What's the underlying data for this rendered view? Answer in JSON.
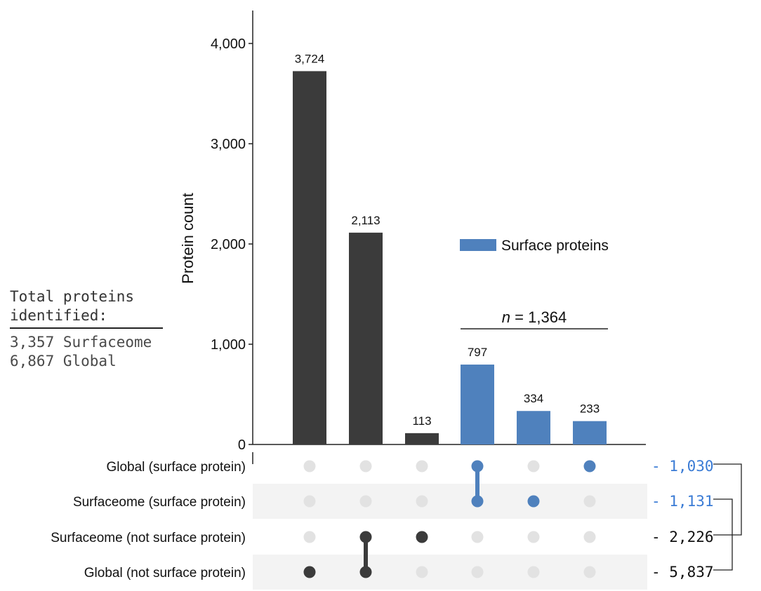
{
  "summary": {
    "title_line1": "Total proteins",
    "title_line2": "identified:",
    "line1": "3,357 Surfaceome",
    "line2": "6,867 Global"
  },
  "colors": {
    "dark": "#3b3b3b",
    "blue": "#4f81bd",
    "blue_text": "#3a7bd5",
    "inactive_dot": "#e2e2e2",
    "stripe": "#f3f3f3"
  },
  "chart_data": {
    "type": "bar",
    "ylabel": "Protein count",
    "ylim": [
      0,
      4000
    ],
    "yticks": [
      0,
      1000,
      2000,
      3000,
      4000
    ],
    "ytick_labels": [
      "0",
      "1,000",
      "2,000",
      "3,000",
      "4,000"
    ],
    "bars": [
      {
        "value": 3724,
        "label": "3,724",
        "group": "dark"
      },
      {
        "value": 2113,
        "label": "2,113",
        "group": "dark"
      },
      {
        "value": 113,
        "label": "113",
        "group": "dark"
      },
      {
        "value": 797,
        "label": "797",
        "group": "blue"
      },
      {
        "value": 334,
        "label": "334",
        "group": "blue"
      },
      {
        "value": 233,
        "label": "233",
        "group": "blue"
      }
    ],
    "legend": {
      "label": "Surface proteins",
      "placement": "top-right"
    },
    "bracket_annotation": {
      "italic": "n",
      "rest": " = 1,364",
      "spans_bars": [
        3,
        5
      ]
    },
    "sets": [
      {
        "name": "Global (surface protein)",
        "size": 1030,
        "size_label": "1,030",
        "color": "blue"
      },
      {
        "name": "Surfaceome (surface protein)",
        "size": 1131,
        "size_label": "1,131",
        "color": "blue"
      },
      {
        "name": "Surfaceome (not surface protein)",
        "size": 2226,
        "size_label": "2,226",
        "color": "dark"
      },
      {
        "name": "Global (not surface protein)",
        "size": 5837,
        "size_label": "5,837",
        "color": "dark"
      }
    ],
    "matrix": [
      [
        3
      ],
      [
        2,
        3
      ],
      [
        2
      ],
      [
        0,
        1
      ],
      [
        1
      ],
      [
        0
      ]
    ],
    "set_pairs_bracketed": [
      [
        0,
        2
      ],
      [
        1,
        3
      ]
    ]
  }
}
